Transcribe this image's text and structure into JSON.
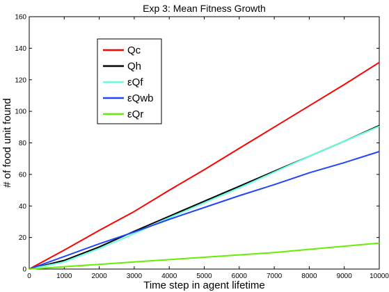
{
  "chart_data": {
    "type": "line",
    "title": "Exp 3: Mean Fitness Growth",
    "xlabel": "Time step in agent lifetime",
    "ylabel": "# of food unit found",
    "xlim": [
      0,
      10000
    ],
    "ylim": [
      0,
      160
    ],
    "xticks": [
      0,
      1000,
      2000,
      3000,
      4000,
      5000,
      6000,
      7000,
      8000,
      9000,
      10000
    ],
    "yticks": [
      0,
      20,
      40,
      60,
      80,
      100,
      120,
      140,
      160
    ],
    "grid": false,
    "legend": {
      "placement": "upper-left",
      "entries": [
        "Qc",
        "Qh",
        "εQf",
        "εQwb",
        "εQr"
      ]
    },
    "series": [
      {
        "name": "Qc",
        "color": "#ff0000",
        "x": [
          0,
          1000,
          2000,
          3000,
          4000,
          5000,
          6000,
          7000,
          8000,
          9000,
          10000
        ],
        "y": [
          0,
          12,
          24.5,
          36.5,
          50,
          63,
          76.5,
          90,
          103.5,
          117,
          131
        ]
      },
      {
        "name": "Qh",
        "color": "#000000",
        "x": [
          0,
          1000,
          2000,
          3000,
          4000,
          5000,
          6000,
          7000,
          8000,
          9000,
          10000
        ],
        "y": [
          0,
          5.5,
          14,
          24,
          33.5,
          43,
          52.5,
          62,
          71.5,
          81,
          91
        ]
      },
      {
        "name": "εQf",
        "color": "#66ffdd",
        "x": [
          0,
          1000,
          2000,
          3000,
          4000,
          5000,
          6000,
          7000,
          8000,
          9000,
          10000
        ],
        "y": [
          0,
          4.5,
          13,
          22.5,
          32.5,
          42,
          51.5,
          61.5,
          71.5,
          81,
          90.5
        ]
      },
      {
        "name": "εQwb",
        "color": "#2244ff",
        "x": [
          0,
          1000,
          2000,
          3000,
          4000,
          5000,
          6000,
          7000,
          8000,
          9000,
          10000
        ],
        "y": [
          0,
          8,
          16,
          23.5,
          31.5,
          39,
          46.5,
          53.5,
          61,
          67.5,
          74.5
        ]
      },
      {
        "name": "εQr",
        "color": "#66ee00",
        "x": [
          0,
          1000,
          2000,
          3000,
          4000,
          5000,
          6000,
          7000,
          8000,
          9000,
          10000
        ],
        "y": [
          0,
          1.5,
          3,
          4.5,
          6,
          7.5,
          9,
          10.5,
          12.5,
          14.5,
          16.5
        ]
      }
    ]
  }
}
